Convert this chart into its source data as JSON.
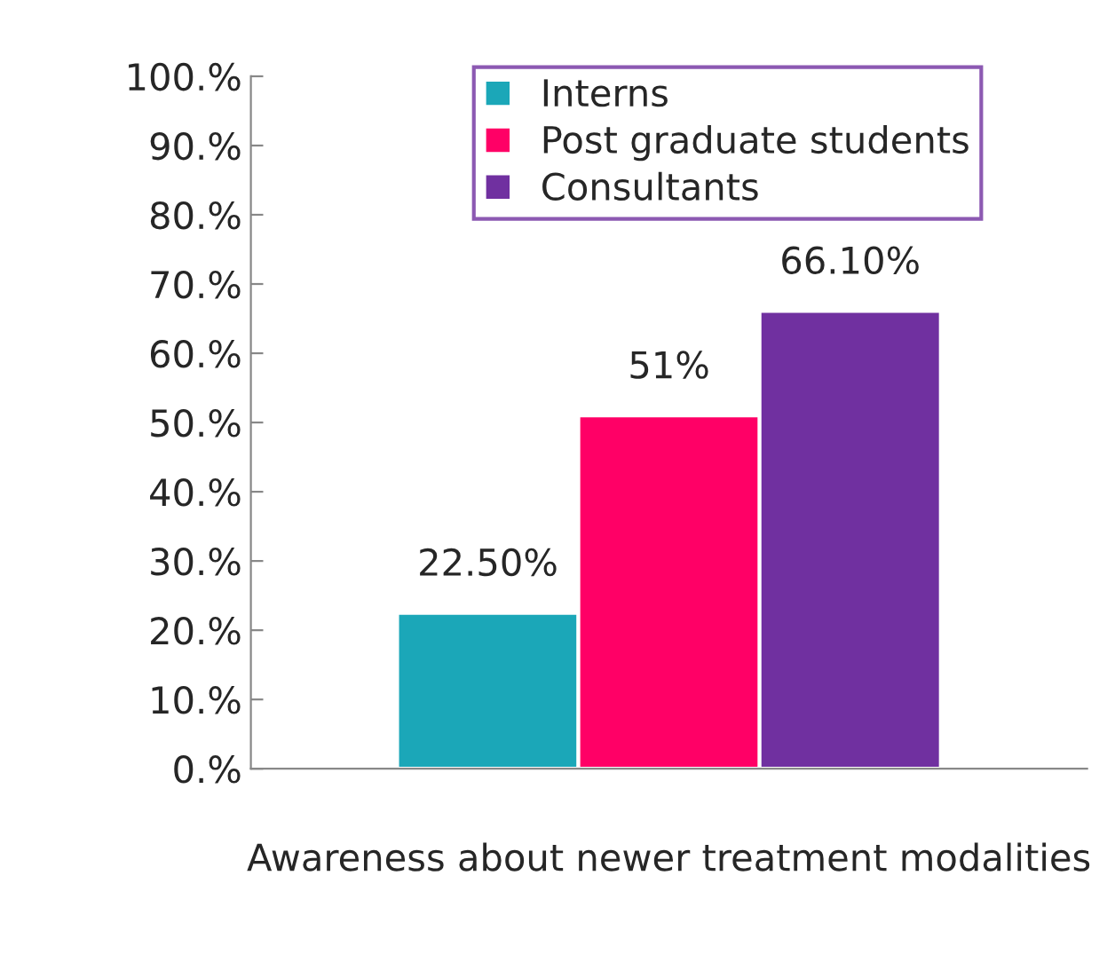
{
  "chart_data": {
    "type": "bar",
    "categories": [
      "Awareness about newer treatment modalities"
    ],
    "series": [
      {
        "name": "Interns",
        "color": "#1ba7b8",
        "values": [
          22.5
        ],
        "value_labels": [
          "22.50%"
        ]
      },
      {
        "name": "Post graduate students",
        "color": "#ff0066",
        "values": [
          51
        ],
        "value_labels": [
          "51%"
        ]
      },
      {
        "name": "Consultants",
        "color": "#7030a0",
        "values": [
          66.1
        ],
        "value_labels": [
          "66.10%"
        ]
      }
    ],
    "ylim": [
      0,
      100
    ],
    "yticks": [
      {
        "value": 0,
        "label": "0.%"
      },
      {
        "value": 10,
        "label": "10.%"
      },
      {
        "value": 20,
        "label": "20.%"
      },
      {
        "value": 30,
        "label": "30.%"
      },
      {
        "value": 40,
        "label": "40.%"
      },
      {
        "value": 50,
        "label": "50.%"
      },
      {
        "value": 60,
        "label": "60.%"
      },
      {
        "value": 70,
        "label": "70.%"
      },
      {
        "value": 80,
        "label": "80.%"
      },
      {
        "value": 90,
        "label": "90.%"
      },
      {
        "value": 100,
        "label": "100.%"
      }
    ],
    "grid": false,
    "legend": "top"
  }
}
